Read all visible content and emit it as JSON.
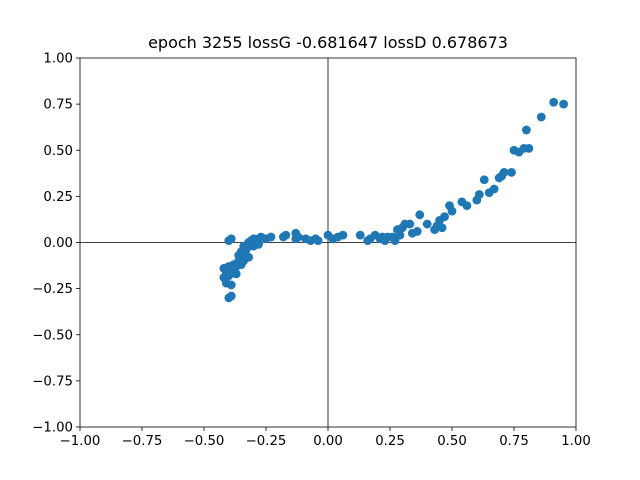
{
  "chart_data": {
    "type": "scatter",
    "title": "epoch 3255 lossG -0.681647 lossD 0.678673",
    "xlabel": "",
    "ylabel": "",
    "xlim": [
      -1.0,
      1.0
    ],
    "ylim": [
      -1.0,
      1.0
    ],
    "x_ticks": [
      "−1.00",
      "−0.75",
      "−0.50",
      "−0.25",
      "0.00",
      "0.25",
      "0.50",
      "0.75",
      "1.00"
    ],
    "y_ticks": [
      "−1.00",
      "−0.75",
      "−0.50",
      "−0.25",
      "0.00",
      "0.25",
      "0.50",
      "0.75",
      "1.00"
    ],
    "x_tick_values": [
      -1.0,
      -0.75,
      -0.5,
      -0.25,
      0.0,
      0.25,
      0.5,
      0.75,
      1.0
    ],
    "y_tick_values": [
      -1.0,
      -0.75,
      -0.5,
      -0.25,
      0.0,
      0.25,
      0.5,
      0.75,
      1.0
    ],
    "reference_lines": {
      "x": 0.0,
      "y": 0.0
    },
    "grid": false,
    "marker_color": "#1f77b4",
    "series": [
      {
        "points": [
          [
            -0.42,
            -0.14
          ],
          [
            -0.42,
            -0.19
          ],
          [
            -0.41,
            -0.16
          ],
          [
            -0.41,
            -0.22
          ],
          [
            -0.4,
            -0.13
          ],
          [
            -0.4,
            -0.18
          ],
          [
            -0.4,
            -0.3
          ],
          [
            -0.39,
            -0.23
          ],
          [
            -0.39,
            -0.14
          ],
          [
            -0.39,
            -0.29
          ],
          [
            -0.4,
            0.01
          ],
          [
            -0.39,
            0.02
          ],
          [
            -0.38,
            -0.12
          ],
          [
            -0.37,
            -0.17
          ],
          [
            -0.37,
            -0.13
          ],
          [
            -0.36,
            -0.1
          ],
          [
            -0.36,
            -0.07
          ],
          [
            -0.35,
            -0.05
          ],
          [
            -0.35,
            -0.12
          ],
          [
            -0.34,
            -0.1
          ],
          [
            -0.34,
            -0.06
          ],
          [
            -0.34,
            -0.02
          ],
          [
            -0.33,
            -0.04
          ],
          [
            -0.32,
            0.0
          ],
          [
            -0.32,
            -0.02
          ],
          [
            -0.32,
            -0.08
          ],
          [
            -0.31,
            0.01
          ],
          [
            -0.3,
            -0.02
          ],
          [
            -0.3,
            0.02
          ],
          [
            -0.29,
            -0.01
          ],
          [
            -0.28,
            0.02
          ],
          [
            -0.28,
            -0.01
          ],
          [
            -0.27,
            0.03
          ],
          [
            -0.25,
            0.02
          ],
          [
            -0.23,
            0.03
          ],
          [
            -0.18,
            0.03
          ],
          [
            -0.17,
            0.04
          ],
          [
            -0.13,
            0.02
          ],
          [
            -0.13,
            0.05
          ],
          [
            -0.12,
            0.03
          ],
          [
            -0.09,
            0.02
          ],
          [
            -0.07,
            0.01
          ],
          [
            -0.05,
            0.02
          ],
          [
            -0.04,
            0.01
          ],
          [
            0.0,
            0.04
          ],
          [
            0.02,
            0.02
          ],
          [
            0.04,
            0.03
          ],
          [
            0.06,
            0.04
          ],
          [
            0.13,
            0.04
          ],
          [
            0.16,
            0.01
          ],
          [
            0.17,
            0.02
          ],
          [
            0.19,
            0.04
          ],
          [
            0.21,
            0.02
          ],
          [
            0.22,
            0.03
          ],
          [
            0.23,
            0.01
          ],
          [
            0.24,
            0.03
          ],
          [
            0.26,
            0.03
          ],
          [
            0.27,
            0.01
          ],
          [
            0.28,
            0.07
          ],
          [
            0.29,
            0.04
          ],
          [
            0.3,
            0.08
          ],
          [
            0.31,
            0.1
          ],
          [
            0.33,
            0.1
          ],
          [
            0.34,
            0.05
          ],
          [
            0.36,
            0.06
          ],
          [
            0.37,
            0.15
          ],
          [
            0.4,
            0.1
          ],
          [
            0.43,
            0.07
          ],
          [
            0.44,
            0.09
          ],
          [
            0.45,
            0.12
          ],
          [
            0.46,
            0.08
          ],
          [
            0.47,
            0.14
          ],
          [
            0.49,
            0.2
          ],
          [
            0.5,
            0.17
          ],
          [
            0.54,
            0.22
          ],
          [
            0.56,
            0.2
          ],
          [
            0.6,
            0.23
          ],
          [
            0.61,
            0.26
          ],
          [
            0.63,
            0.34
          ],
          [
            0.65,
            0.27
          ],
          [
            0.67,
            0.29
          ],
          [
            0.69,
            0.35
          ],
          [
            0.7,
            0.36
          ],
          [
            0.71,
            0.38
          ],
          [
            0.74,
            0.38
          ],
          [
            0.75,
            0.5
          ],
          [
            0.77,
            0.49
          ],
          [
            0.79,
            0.51
          ],
          [
            0.8,
            0.61
          ],
          [
            0.81,
            0.51
          ],
          [
            0.86,
            0.68
          ],
          [
            0.91,
            0.76
          ],
          [
            0.95,
            0.75
          ]
        ]
      }
    ]
  }
}
